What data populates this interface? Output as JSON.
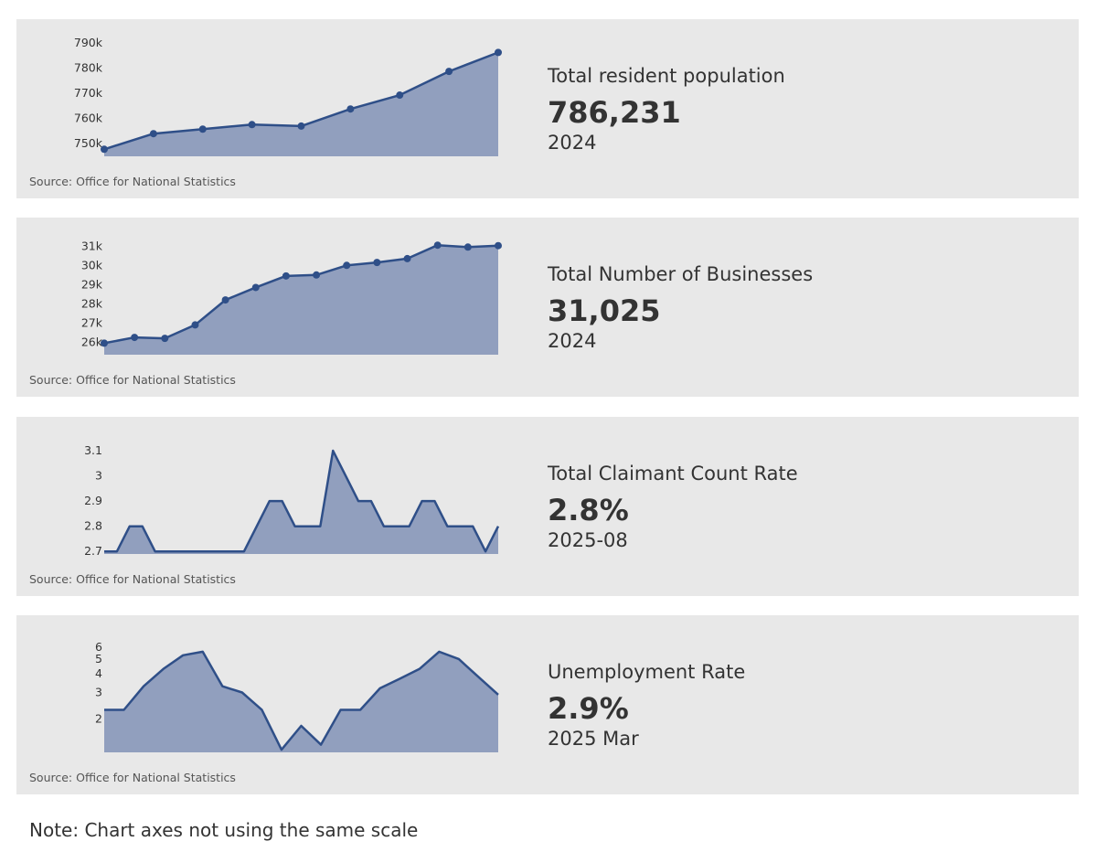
{
  "colors": {
    "line": "#2f4f88",
    "fill": "#919fbe",
    "card_bg": "#e8e8e8",
    "text": "#333333"
  },
  "cards": [
    {
      "title": "Total resident population",
      "value": "786,231",
      "date": "2024",
      "source": "Source: Office for National Statistics"
    },
    {
      "title": "Total Number of Businesses",
      "value": "31,025",
      "date": "2024",
      "source": "Source: Office for National Statistics"
    },
    {
      "title": "Total Claimant Count Rate",
      "value": "2.8%",
      "date": "2025-08",
      "source": "Source: Office for National Statistics"
    },
    {
      "title": "Unemployment Rate",
      "value": "2.9%",
      "date": "2025 Mar",
      "source": "Source: Office for National Statistics"
    }
  ],
  "chart_data": [
    {
      "type": "area",
      "title": "Total resident population",
      "markers": true,
      "values": [
        747800,
        754000,
        755800,
        757600,
        757000,
        763800,
        769300,
        778700,
        786231
      ],
      "ylim": [
        745000,
        790000
      ],
      "yticks": [
        750000,
        760000,
        770000,
        780000,
        790000
      ],
      "ytick_labels": [
        "750k",
        "760k",
        "770k",
        "780k",
        "790k"
      ]
    },
    {
      "type": "area",
      "title": "Total Number of Businesses",
      "markers": true,
      "values": [
        25950,
        26250,
        26200,
        26900,
        28200,
        28850,
        29450,
        29500,
        30000,
        30150,
        30350,
        31050,
        30950,
        31025
      ],
      "ylim": [
        25350,
        31250
      ],
      "yticks": [
        26000,
        27000,
        28000,
        29000,
        30000,
        31000
      ],
      "ytick_labels": [
        "26k",
        "27k",
        "28k",
        "29k",
        "30k",
        "31k"
      ]
    },
    {
      "type": "area",
      "title": "Total Claimant Count Rate",
      "markers": false,
      "values": [
        2.7,
        2.7,
        2.8,
        2.8,
        2.7,
        2.7,
        2.7,
        2.7,
        2.7,
        2.7,
        2.7,
        2.7,
        2.8,
        2.9,
        2.9,
        2.8,
        2.8,
        2.8,
        3.1,
        3.0,
        2.9,
        2.9,
        2.8,
        2.8,
        2.8,
        2.9,
        2.9,
        2.8,
        2.8,
        2.8,
        2.7,
        2.8
      ],
      "ylim": [
        2.69,
        3.14
      ],
      "yticks": [
        2.7,
        2.8,
        2.9,
        3.0,
        3.1
      ],
      "ytick_labels": [
        "2.7",
        "2.8",
        "2.9",
        "3",
        "3.1"
      ]
    },
    {
      "type": "area",
      "title": "Unemployment Rate",
      "markers": false,
      "scale": "log",
      "values": [
        2.3,
        2.3,
        3.3,
        4.3,
        5.3,
        5.6,
        3.3,
        3.0,
        2.3,
        1.25,
        1.8,
        1.35,
        2.3,
        2.3,
        3.2,
        3.7,
        4.3,
        5.6,
        5.0,
        3.8,
        2.9
      ],
      "ylim": [
        1.2,
        6.8
      ],
      "yticks": [
        2,
        3,
        4,
        5,
        6
      ],
      "ytick_labels": [
        "2",
        "3",
        "4",
        "5",
        "6"
      ]
    }
  ],
  "note": "Note: Chart axes not using the same scale"
}
